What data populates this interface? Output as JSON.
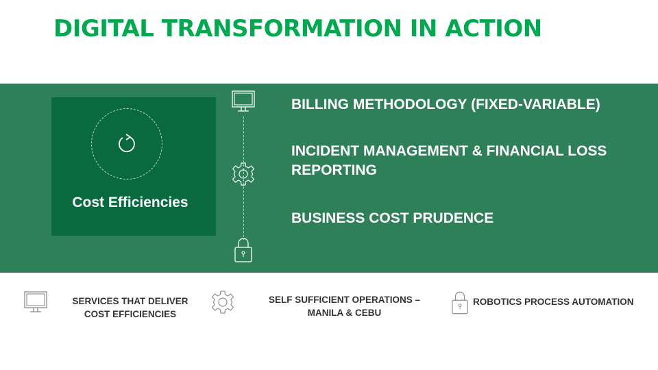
{
  "title": "DIGITAL TRANSFORMATION IN ACTION",
  "card": {
    "label": "Cost Efficiencies",
    "icon": "refresh-icon"
  },
  "bullets": [
    {
      "text": "BILLING METHODOLOGY (FIXED-VARIABLE)",
      "icon": "monitor-icon"
    },
    {
      "text": "INCIDENT MANAGEMENT & FINANCIAL LOSS REPORTING",
      "icon": "gear-icon"
    },
    {
      "text": "BUSINESS COST PRUDENCE",
      "icon": "lock-icon"
    }
  ],
  "bottom": [
    {
      "line1": "SERVICES THAT DELIVER",
      "line2": "COST EFFICIENCIES",
      "icon": "monitor-icon"
    },
    {
      "line1": "SELF SUFFICIENT OPERATIONS –",
      "line2": "MANILA & CEBU",
      "icon": "gear-icon"
    },
    {
      "line1": "ROBOTICS PROCESS AUTOMATION",
      "line2": "",
      "icon": "lock-icon"
    }
  ],
  "colors": {
    "title": "#00a94f",
    "band": "#2e8059",
    "card": "#086a3d",
    "icon_light": "#ffffff",
    "icon_grey": "#8c8c8c"
  }
}
